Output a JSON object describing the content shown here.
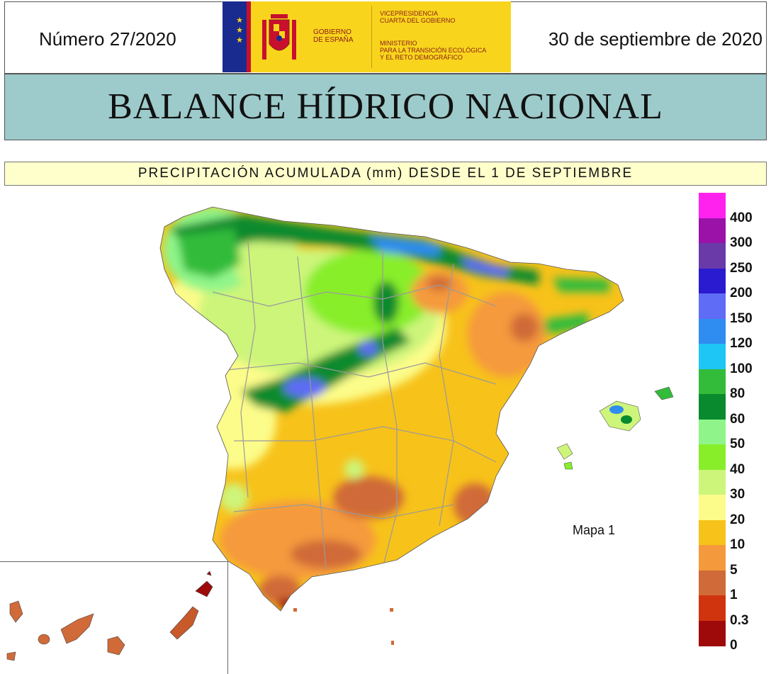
{
  "header": {
    "issue": "Número 27/2020",
    "date": "30 de septiembre de 2020",
    "logo": {
      "gobierno": [
        "GOBIERNO",
        "DE ESPAÑA"
      ],
      "vicepresidencia": [
        "VICEPRESIDENCIA",
        "CUARTA DEL GOBIERNO"
      ],
      "ministerio": [
        "MINISTERIO",
        "PARA LA TRANSICIÓN ECOLÓGICA",
        "Y EL RETO DEMOGRÁFICO"
      ]
    }
  },
  "title": "BALANCE HÍDRICO NACIONAL",
  "subtitle": "PRECIPITACIÓN ACUMULADA (mm) DESDE EL 1 DE SEPTIEMBRE",
  "map_label": "Mapa 1",
  "legend": {
    "levels": [
      {
        "label": "400",
        "color": "#ff22ee"
      },
      {
        "label": "300",
        "color": "#9a12a8"
      },
      {
        "label": "250",
        "color": "#6a3aa8"
      },
      {
        "label": "200",
        "color": "#2a1ad0"
      },
      {
        "label": "150",
        "color": "#5f6cf5"
      },
      {
        "label": "120",
        "color": "#2f8cf0"
      },
      {
        "label": "100",
        "color": "#1ec6f5"
      },
      {
        "label": "80",
        "color": "#33bb3a"
      },
      {
        "label": "60",
        "color": "#0a8a2e"
      },
      {
        "label": "50",
        "color": "#8ff58a"
      },
      {
        "label": "40",
        "color": "#88ee2a"
      },
      {
        "label": "30",
        "color": "#cdf57a"
      },
      {
        "label": "20",
        "color": "#fcfc8a"
      },
      {
        "label": "10",
        "color": "#f7c21a"
      },
      {
        "label": "5",
        "color": "#f59a3c"
      },
      {
        "label": "1",
        "color": "#d06a38"
      },
      {
        "label": "0.3",
        "color": "#d0340e"
      },
      {
        "label": "0",
        "color": "#9e0a0a"
      }
    ]
  }
}
